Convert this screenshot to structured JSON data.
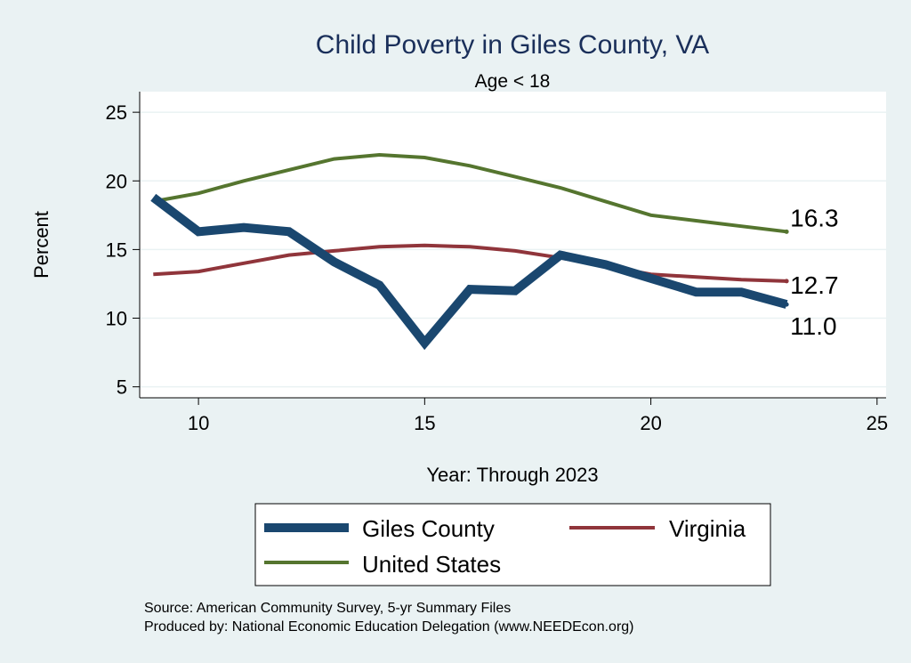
{
  "chart_data": {
    "type": "line",
    "title": "Child Poverty in Giles County, VA",
    "subtitle": "Age < 18",
    "xlabel": "Year: Through 2023",
    "ylabel": "Percent",
    "xlim": [
      8.7,
      25.2
    ],
    "ylim": [
      4.2,
      26.5
    ],
    "xticks": [
      10,
      15,
      20,
      25
    ],
    "yticks": [
      5,
      10,
      15,
      20,
      25
    ],
    "grid": "horizontal",
    "legend_position": "bottom",
    "x": [
      9,
      10,
      11,
      12,
      13,
      14,
      15,
      16,
      17,
      18,
      19,
      20,
      21,
      22,
      23
    ],
    "series": [
      {
        "name": "Giles County",
        "color": "#1a476f",
        "values": [
          18.8,
          16.3,
          16.6,
          16.3,
          14.1,
          12.4,
          8.2,
          12.1,
          12.0,
          14.6,
          13.9,
          12.9,
          11.9,
          11.9,
          11.0
        ],
        "end_label": "11.0"
      },
      {
        "name": "Virginia",
        "color": "#90353b",
        "values": [
          13.2,
          13.4,
          14.0,
          14.6,
          14.9,
          15.2,
          15.3,
          15.2,
          14.9,
          14.4,
          13.8,
          13.2,
          13.0,
          12.8,
          12.7
        ],
        "end_label": "12.7"
      },
      {
        "name": "United States",
        "color": "#55752f",
        "values": [
          18.5,
          19.1,
          20.0,
          20.8,
          21.6,
          21.9,
          21.7,
          21.1,
          20.3,
          19.5,
          18.5,
          17.5,
          17.1,
          16.7,
          16.3
        ],
        "end_label": "16.3"
      }
    ],
    "notes": [
      "Source: American Community Survey, 5-yr Summary Files",
      "Produced by: National Economic Education Delegation (www.NEEDEcon.org)"
    ]
  }
}
